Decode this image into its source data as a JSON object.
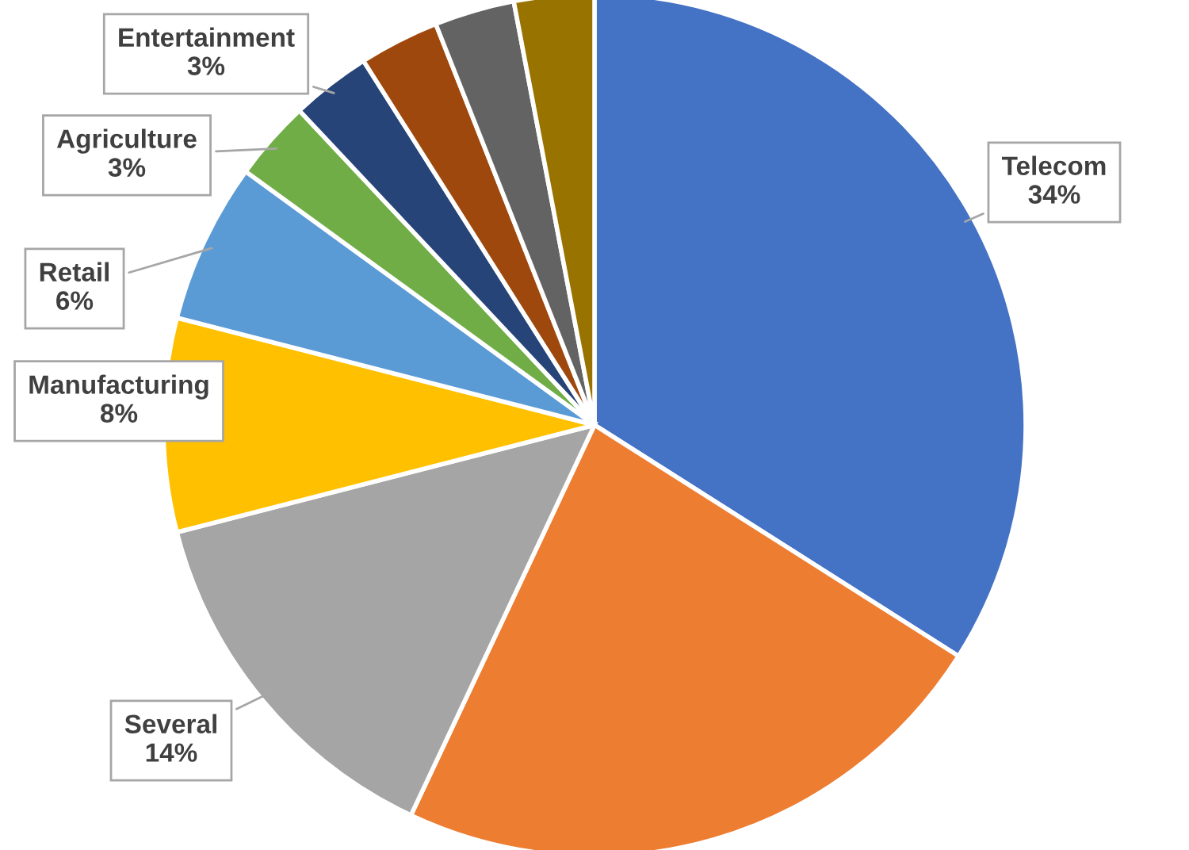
{
  "chart_data": {
    "type": "pie",
    "categories": [
      "Telecom",
      null,
      "Several",
      "Manufacturing",
      "Retail",
      "Agriculture",
      "Entertainment",
      null,
      null,
      null
    ],
    "values": [
      34,
      23,
      14,
      8,
      6,
      3,
      3,
      3,
      3,
      3
    ],
    "value_labels": [
      "34%",
      null,
      "14%",
      "8%",
      "6%",
      "3%",
      "3%",
      null,
      null,
      null
    ],
    "colors": [
      "#4472c4",
      "#ed7d31",
      "#a5a5a5",
      "#ffc000",
      "#5b9bd5",
      "#70ad47",
      "#264478",
      "#9e480e",
      "#636363",
      "#997300"
    ],
    "legend": false
  }
}
